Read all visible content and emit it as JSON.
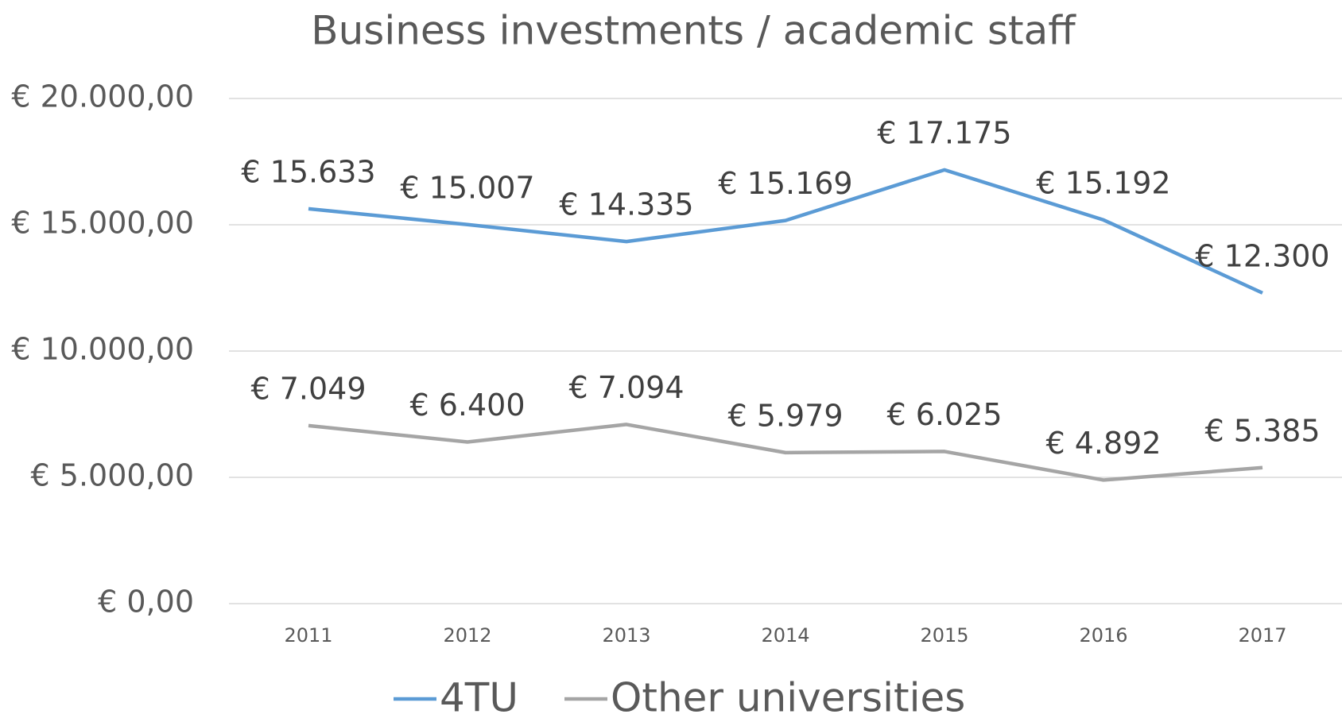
{
  "chart_data": {
    "type": "line",
    "title": "Business investments / academic staff",
    "categories": [
      "2011",
      "2012",
      "2013",
      "2014",
      "2015",
      "2016",
      "2017"
    ],
    "series": [
      {
        "name": "4TU",
        "color": "#5b9bd5",
        "values": [
          15633,
          15007,
          14335,
          15169,
          17175,
          15192,
          12300
        ],
        "value_labels": [
          "€ 15.633",
          "€ 15.007",
          "€ 14.335",
          "€ 15.169",
          "€ 17.175",
          "€ 15.192",
          "€ 12.300"
        ]
      },
      {
        "name": "Other universities",
        "color": "#a5a5a5",
        "values": [
          7049,
          6400,
          7094,
          5979,
          6025,
          4892,
          5385
        ],
        "value_labels": [
          "€ 7.049",
          "€ 6.400",
          "€ 7.094",
          "€ 5.979",
          "€ 6.025",
          "€ 4.892",
          "€ 5.385"
        ]
      }
    ],
    "ylim": [
      0,
      20000
    ],
    "yticks": [
      {
        "value": 0,
        "label": "€ 0,00"
      },
      {
        "value": 5000,
        "label": "€ 5.000,00"
      },
      {
        "value": 10000,
        "label": "€ 10.000,00"
      },
      {
        "value": 15000,
        "label": "€ 15.000,00"
      },
      {
        "value": 20000,
        "label": "€ 20.000,00"
      }
    ],
    "grid": true,
    "legend": "bottom"
  }
}
